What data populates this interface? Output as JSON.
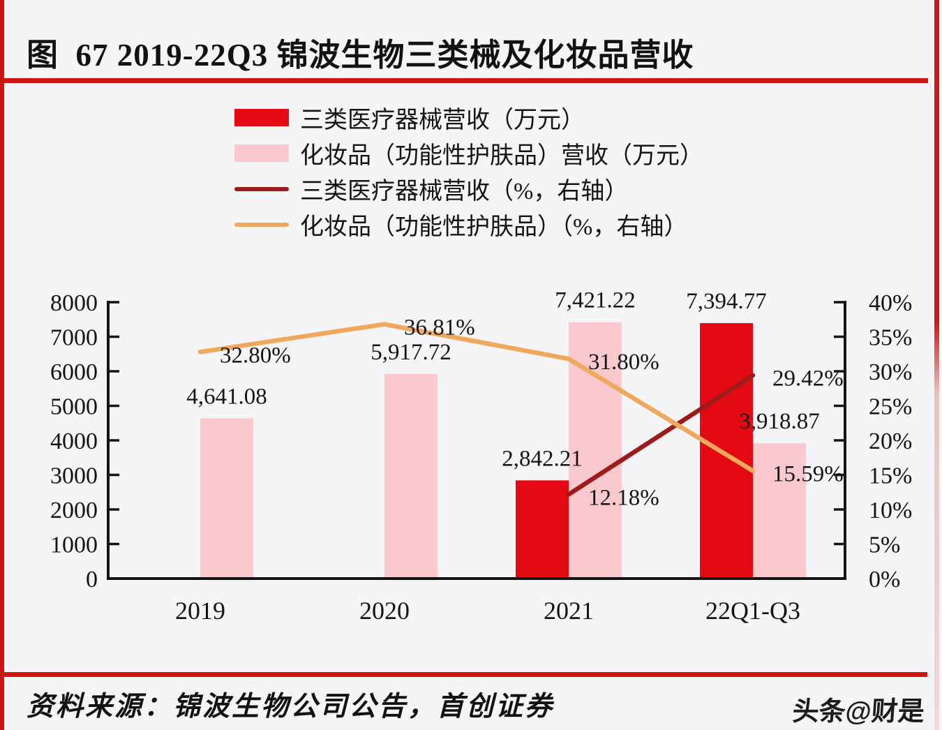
{
  "page": {
    "title": "图  67 2019-22Q3 锦波生物三类械及化妆品营收",
    "watermark": "头条@财是"
  },
  "footer": {
    "source": "资料来源：锦波生物公司公告，首创证券"
  },
  "colors": {
    "background": "#f5f5f7",
    "accent_red_divider": "#cf1212",
    "bar_red": "#e30a14",
    "bar_pink": "#f9c9cd",
    "line_dark_red": "#9e1b1b",
    "line_orange": "#f0a85c",
    "text": "#141414"
  },
  "legend": {
    "items": [
      {
        "label": "三类医疗器械营收（万元）",
        "type": "bar",
        "color": "#e30a14"
      },
      {
        "label": "化妆品（功能性护肤品）营收（万元）",
        "type": "bar",
        "color": "#f9c9cd"
      },
      {
        "label": "三类医疗器械营收（%，右轴）",
        "type": "line",
        "color": "#9e1b1b"
      },
      {
        "label": "化妆品（功能性护肤品）（%，右轴）",
        "type": "line",
        "color": "#f0a85c"
      }
    ]
  },
  "chart_data": {
    "type": "bar",
    "subtype": "bar-line combo, dual axis",
    "categories": [
      "2019",
      "2020",
      "2021",
      "22Q1-Q3"
    ],
    "series": [
      {
        "name": "三类医疗器械营收（万元）",
        "type": "bar",
        "axis": "left",
        "color": "#e30a14",
        "values": [
          null,
          null,
          2842.21,
          7394.77
        ],
        "labels": [
          null,
          null,
          "2,842.21",
          "7,394.77"
        ]
      },
      {
        "name": "化妆品（功能性护肤品）营收（万元）",
        "type": "bar",
        "axis": "left",
        "color": "#f9c9cd",
        "values": [
          4641.08,
          5917.72,
          7421.22,
          3918.87
        ],
        "labels": [
          "4,641.08",
          "5,917.72",
          "7,421.22",
          "3,918.87"
        ]
      },
      {
        "name": "三类医疗器械营收（%，右轴）",
        "type": "line",
        "axis": "right",
        "color": "#9e1b1b",
        "values": [
          null,
          null,
          12.18,
          29.42
        ],
        "labels": [
          null,
          null,
          "12.18%",
          "29.42%"
        ]
      },
      {
        "name": "化妆品（功能性护肤品）（%，右轴）",
        "type": "line",
        "axis": "right",
        "color": "#f0a85c",
        "values": [
          32.8,
          36.81,
          31.8,
          15.59
        ],
        "labels": [
          "32.80%",
          "36.81%",
          "31.80%",
          "15.59%"
        ]
      }
    ],
    "left_axis": {
      "min": 0,
      "max": 8000,
      "step": 1000,
      "ticks": [
        "0",
        "1000",
        "2000",
        "3000",
        "4000",
        "5000",
        "6000",
        "7000",
        "8000"
      ]
    },
    "right_axis": {
      "min": 0,
      "max": 40,
      "step": 5,
      "ticks": [
        "0%",
        "5%",
        "10%",
        "15%",
        "20%",
        "25%",
        "30%",
        "35%",
        "40%"
      ]
    },
    "grid": false,
    "legend_position": "top-center"
  }
}
